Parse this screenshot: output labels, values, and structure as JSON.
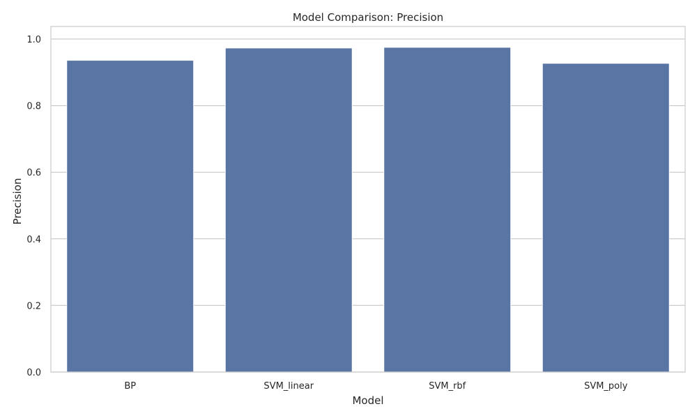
{
  "chart_data": {
    "type": "bar",
    "title": "Model Comparison: Precision",
    "xlabel": "Model",
    "ylabel": "Precision",
    "categories": [
      "BP",
      "SVM_linear",
      "SVM_rbf",
      "SVM_poly"
    ],
    "values": [
      0.936,
      0.973,
      0.975,
      0.927
    ],
    "ylim": [
      0,
      1.0
    ],
    "yticks": [
      0.0,
      0.2,
      0.4,
      0.6,
      0.8,
      1.0
    ],
    "ytick_labels": [
      "0.0",
      "0.2",
      "0.4",
      "0.6",
      "0.8",
      "1.0"
    ],
    "grid": true,
    "bar_color": "#5975a4",
    "grid_color": "#cccccc"
  }
}
